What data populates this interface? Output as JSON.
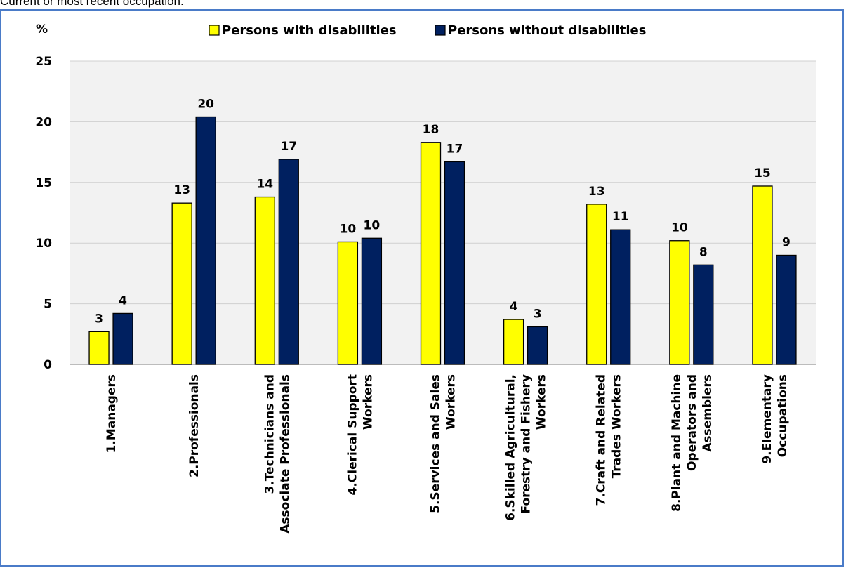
{
  "caption": "Current or most recent occupation:",
  "chart_data": {
    "type": "bar",
    "ylabel": "%",
    "ylim": [
      0,
      25
    ],
    "yticks": [
      0,
      5,
      10,
      15,
      20,
      25
    ],
    "grid": true,
    "legend_position": "top",
    "categories": [
      [
        "1.Managers"
      ],
      [
        "2.Professionals"
      ],
      [
        "3.Technicians and",
        "Associate Professionals"
      ],
      [
        "4.Clerical Support",
        "Workers"
      ],
      [
        "5.Services and Sales",
        "Workers"
      ],
      [
        "6.Skilled Agricultural,",
        "Forestry and Fishery",
        "Workers"
      ],
      [
        "7.Craft and Related",
        "Trades Workers"
      ],
      [
        "8.Plant and Machine",
        "Operators and",
        "Assemblers"
      ],
      [
        "9.Elementary",
        "Occupations"
      ]
    ],
    "series": [
      {
        "name": "Persons with disabilities",
        "color": "#ffff00",
        "values": [
          2.7,
          13.3,
          13.8,
          10.1,
          18.3,
          3.7,
          13.2,
          10.2,
          14.7
        ],
        "labels": [
          "3",
          "13",
          "14",
          "10",
          "18",
          "4",
          "13",
          "10",
          "15"
        ]
      },
      {
        "name": "Persons without disabilities",
        "color": "#002060",
        "values": [
          4.2,
          20.4,
          16.9,
          10.4,
          16.7,
          3.1,
          11.1,
          8.2,
          9.0
        ],
        "labels": [
          "4",
          "20",
          "17",
          "10",
          "17",
          "3",
          "11",
          "8",
          "9"
        ]
      }
    ]
  }
}
